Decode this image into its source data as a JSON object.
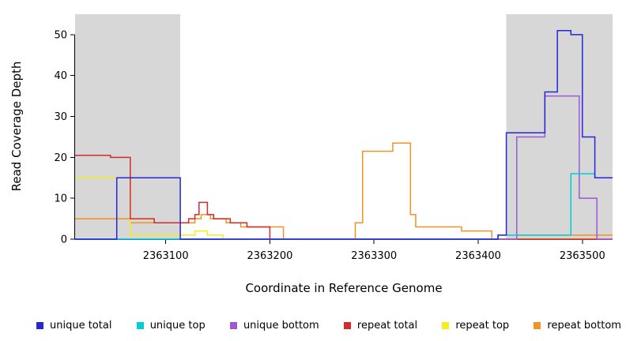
{
  "chart_data": {
    "type": "line",
    "step": "after",
    "title": "",
    "xlabel": "Coordinate in Reference Genome",
    "ylabel": "Read Coverage Depth",
    "xlim": [
      2363013,
      2363529
    ],
    "ylim": [
      0,
      55
    ],
    "xticks": [
      2363100,
      2363200,
      2363300,
      2363400,
      2363500
    ],
    "yticks": [
      0,
      10,
      20,
      30,
      40,
      50
    ],
    "grid": false,
    "legend_position": "bottom",
    "background": "#ffffff",
    "shaded_region_color": "#d7d7d7",
    "shaded_regions": [
      {
        "from": 2363013,
        "to": 2363114
      },
      {
        "from": 2363427,
        "to": 2363529
      }
    ],
    "series": [
      {
        "name": "unique total",
        "color": "#2626d8",
        "points": [
          [
            2363013,
            0
          ],
          [
            2363053,
            15
          ],
          [
            2363114,
            0
          ],
          [
            2363419,
            1
          ],
          [
            2363427,
            26
          ],
          [
            2363464,
            36
          ],
          [
            2363476,
            51
          ],
          [
            2363489,
            50
          ],
          [
            2363500,
            25
          ],
          [
            2363512,
            15
          ]
        ]
      },
      {
        "name": "unique top",
        "color": "#00ced1",
        "points": [
          [
            2363013,
            0
          ],
          [
            2363419,
            1
          ],
          [
            2363489,
            16
          ],
          [
            2363512,
            15
          ]
        ]
      },
      {
        "name": "unique bottom",
        "color": "#9b59d6",
        "points": [
          [
            2363013,
            0
          ],
          [
            2363437,
            25
          ],
          [
            2363464,
            35
          ],
          [
            2363497,
            10
          ],
          [
            2363514,
            0
          ]
        ]
      },
      {
        "name": "repeat total",
        "color": "#d42a2a",
        "points": [
          [
            2363013,
            20.5
          ],
          [
            2363047,
            20
          ],
          [
            2363066,
            5
          ],
          [
            2363089,
            4
          ],
          [
            2363122,
            5
          ],
          [
            2363128,
            6
          ],
          [
            2363132,
            9
          ],
          [
            2363140,
            6
          ],
          [
            2363146,
            5
          ],
          [
            2363162,
            4
          ],
          [
            2363178,
            3
          ],
          [
            2363200,
            0
          ]
        ]
      },
      {
        "name": "repeat top",
        "color": "#f2ee20",
        "points": [
          [
            2363013,
            15
          ],
          [
            2363066,
            1
          ],
          [
            2363122,
            1
          ],
          [
            2363128,
            2
          ],
          [
            2363140,
            1
          ],
          [
            2363155,
            0
          ]
        ]
      },
      {
        "name": "repeat bottom",
        "color": "#f09322",
        "points": [
          [
            2363013,
            5
          ],
          [
            2363066,
            4
          ],
          [
            2363122,
            4
          ],
          [
            2363128,
            5
          ],
          [
            2363134,
            6
          ],
          [
            2363143,
            5
          ],
          [
            2363158,
            4
          ],
          [
            2363172,
            3
          ],
          [
            2363213,
            0
          ],
          [
            2363282,
            4
          ],
          [
            2363289,
            21.5
          ],
          [
            2363318,
            23.5
          ],
          [
            2363335,
            6
          ],
          [
            2363340,
            3
          ],
          [
            2363384,
            2
          ],
          [
            2363413,
            0
          ],
          [
            2363437,
            1
          ]
        ]
      }
    ]
  }
}
